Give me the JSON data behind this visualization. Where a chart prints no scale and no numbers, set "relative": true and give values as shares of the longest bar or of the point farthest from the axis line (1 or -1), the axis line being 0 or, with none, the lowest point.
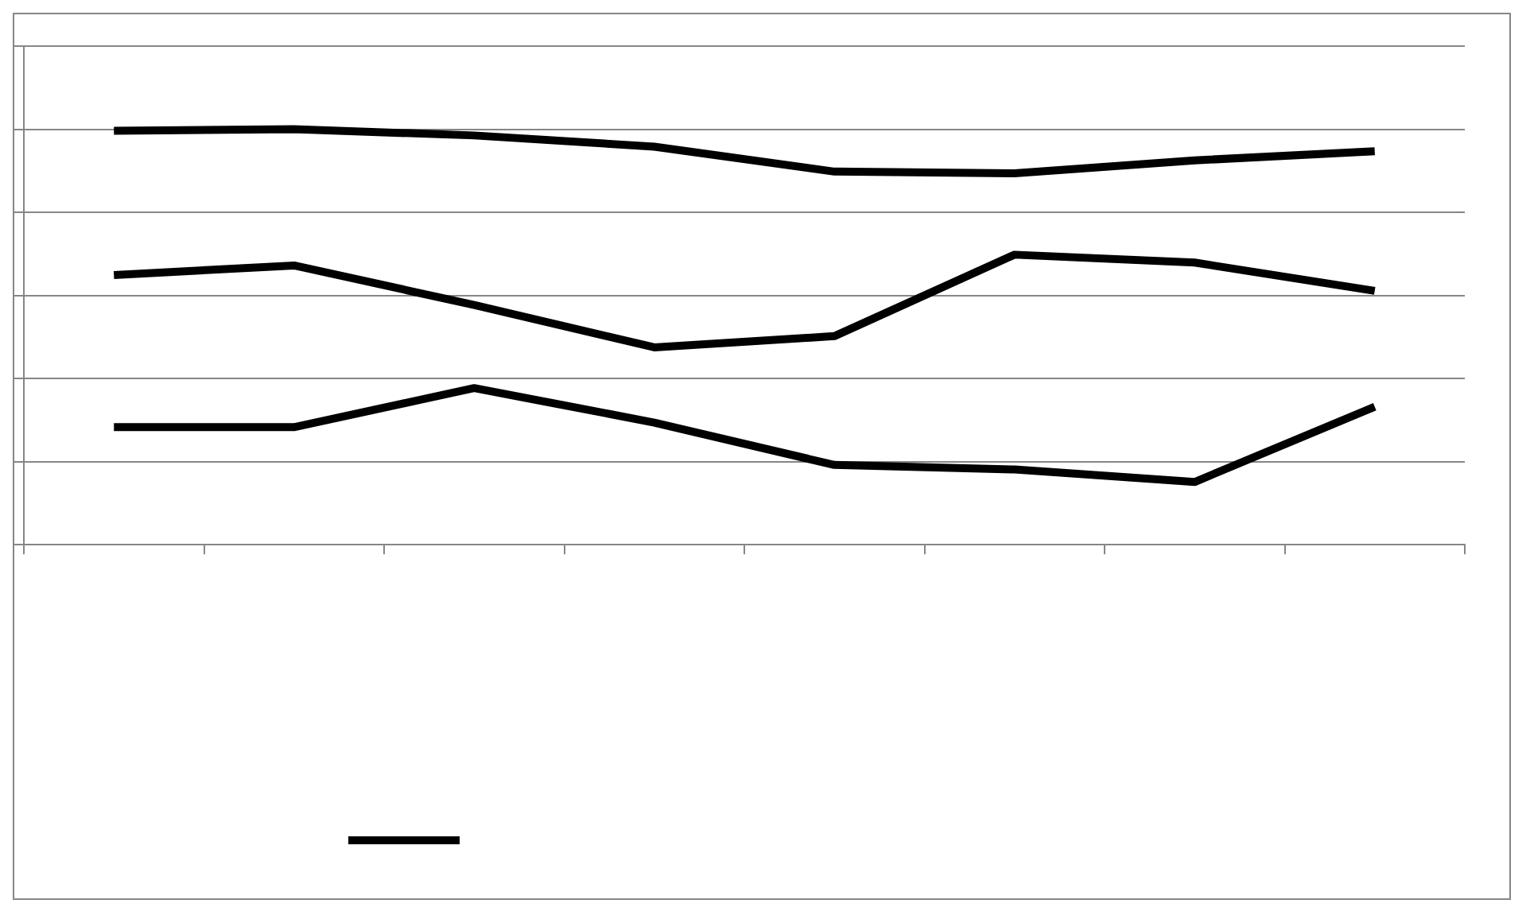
{
  "chart_data": {
    "type": "line",
    "relative": true,
    "categories": [
      null,
      null,
      null,
      null,
      null,
      null,
      null,
      null
    ],
    "grid": "y",
    "marker": "none",
    "line_style": "solid",
    "legend": false,
    "series": [
      {
        "color": "#000000",
        "values": [
          0.996,
          1,
          0.985,
          0.958,
          0.898,
          0.894,
          0.925,
          0.947
        ]
      },
      {
        "color": "#000000",
        "values": [
          0.649,
          0.672,
          0.577,
          0.475,
          0.502,
          0.698,
          0.679,
          0.611
        ]
      },
      {
        "color": "#000000",
        "values": [
          0.283,
          0.283,
          0.377,
          0.294,
          0.192,
          0.181,
          0.151,
          0.332
        ]
      }
    ]
  }
}
